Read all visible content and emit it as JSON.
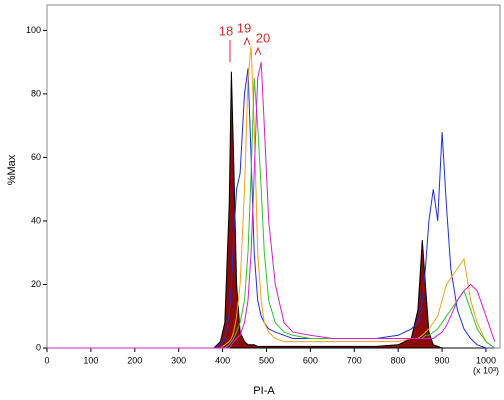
{
  "chart_data": {
    "type": "line",
    "y_label": "%Max",
    "x_label": "PI-A",
    "x_unit": "(x 10³)",
    "annotations": [
      "18",
      "19",
      "20"
    ],
    "x": [
      0,
      360,
      380,
      395,
      405,
      415,
      420,
      425,
      432,
      440,
      450,
      458,
      465,
      472,
      480,
      488,
      495,
      505,
      520,
      540,
      560,
      600,
      650,
      700,
      750,
      800,
      830,
      845,
      855,
      862,
      870,
      880,
      890,
      900,
      910,
      920,
      935,
      950,
      965,
      980,
      1000,
      1020
    ],
    "series": [
      {
        "color": "#8b0a0a",
        "filled": true,
        "values": [
          0,
          0,
          0,
          2,
          8,
          45,
          87,
          60,
          20,
          5,
          2,
          1,
          1,
          1,
          0.5,
          0.5,
          0.5,
          0.5,
          0.5,
          0.5,
          0.5,
          0.5,
          0.5,
          0.5,
          0.5,
          1,
          3,
          12,
          34,
          20,
          5,
          1,
          0.5,
          0,
          0,
          0,
          0,
          0,
          0,
          0,
          0,
          0
        ]
      },
      {
        "color": "#1f2fd0",
        "values": [
          0,
          0,
          0,
          1,
          3,
          10,
          20,
          35,
          50,
          55,
          80,
          88,
          60,
          30,
          15,
          10,
          8,
          6,
          5,
          4,
          3,
          3,
          3,
          3,
          3,
          4,
          6,
          8,
          15,
          25,
          40,
          50,
          40,
          68,
          45,
          25,
          12,
          6,
          3,
          1,
          0,
          0
        ]
      },
      {
        "color": "#f0a020",
        "values": [
          0,
          0,
          0,
          0,
          1,
          2,
          3,
          5,
          10,
          20,
          50,
          85,
          95,
          70,
          30,
          15,
          8,
          5,
          3,
          2,
          2,
          2,
          2,
          2,
          2,
          2,
          3,
          3,
          4,
          5,
          6,
          8,
          10,
          15,
          20,
          22,
          25,
          28,
          15,
          8,
          2,
          0
        ]
      },
      {
        "color": "#30c030",
        "values": [
          0,
          0,
          0,
          0,
          0,
          1,
          2,
          3,
          5,
          8,
          15,
          30,
          55,
          85,
          70,
          50,
          30,
          15,
          8,
          5,
          4,
          3,
          3,
          3,
          3,
          3,
          3,
          3,
          3,
          4,
          4,
          5,
          6,
          8,
          10,
          12,
          15,
          18,
          12,
          6,
          2,
          0
        ]
      },
      {
        "color": "#d020d0",
        "values": [
          0,
          0,
          0,
          0,
          0,
          0,
          1,
          2,
          3,
          4,
          8,
          15,
          30,
          55,
          85,
          90,
          70,
          40,
          20,
          8,
          5,
          4,
          3,
          3,
          3,
          3,
          3,
          3,
          3,
          3,
          3,
          3,
          4,
          5,
          7,
          10,
          15,
          18,
          20,
          18,
          10,
          2
        ]
      }
    ],
    "xlim": [
      0,
      1032
    ],
    "ylim": [
      0,
      108
    ],
    "xticks": [
      0,
      100,
      200,
      300,
      400,
      500,
      600,
      700,
      800,
      900,
      1000
    ],
    "yticks": [
      0,
      20,
      40,
      60,
      80,
      100
    ],
    "grid": false
  }
}
